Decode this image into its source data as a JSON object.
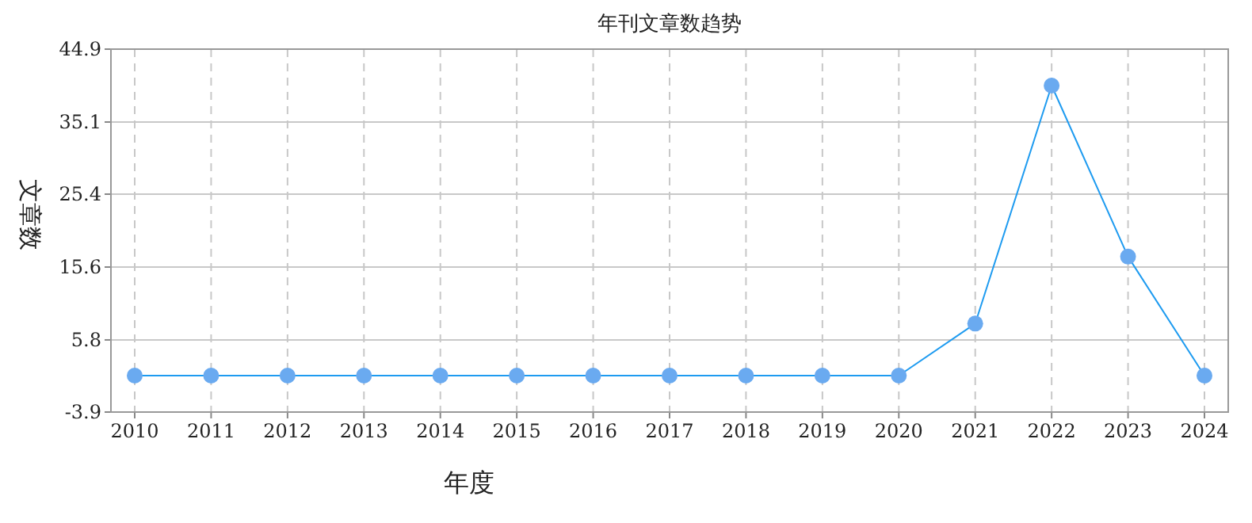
{
  "chart_data": {
    "type": "line",
    "title": "年刊文章数趋势",
    "xlabel": "年度",
    "ylabel": "文章数",
    "categories": [
      "2010",
      "2011",
      "2012",
      "2013",
      "2014",
      "2015",
      "2016",
      "2017",
      "2018",
      "2019",
      "2020",
      "2021",
      "2022",
      "2023",
      "2024"
    ],
    "series": [
      {
        "color": "#1e9bf0",
        "values": [
          1,
          1,
          1,
          1,
          1,
          1,
          1,
          1,
          1,
          1,
          1,
          8,
          40,
          17,
          1
        ]
      }
    ],
    "ylim": [
      -3.9,
      44.9
    ],
    "yticks": [
      -3.9,
      5.8,
      15.6,
      25.4,
      35.1,
      44.9
    ],
    "grid": true,
    "marker": "circle"
  }
}
